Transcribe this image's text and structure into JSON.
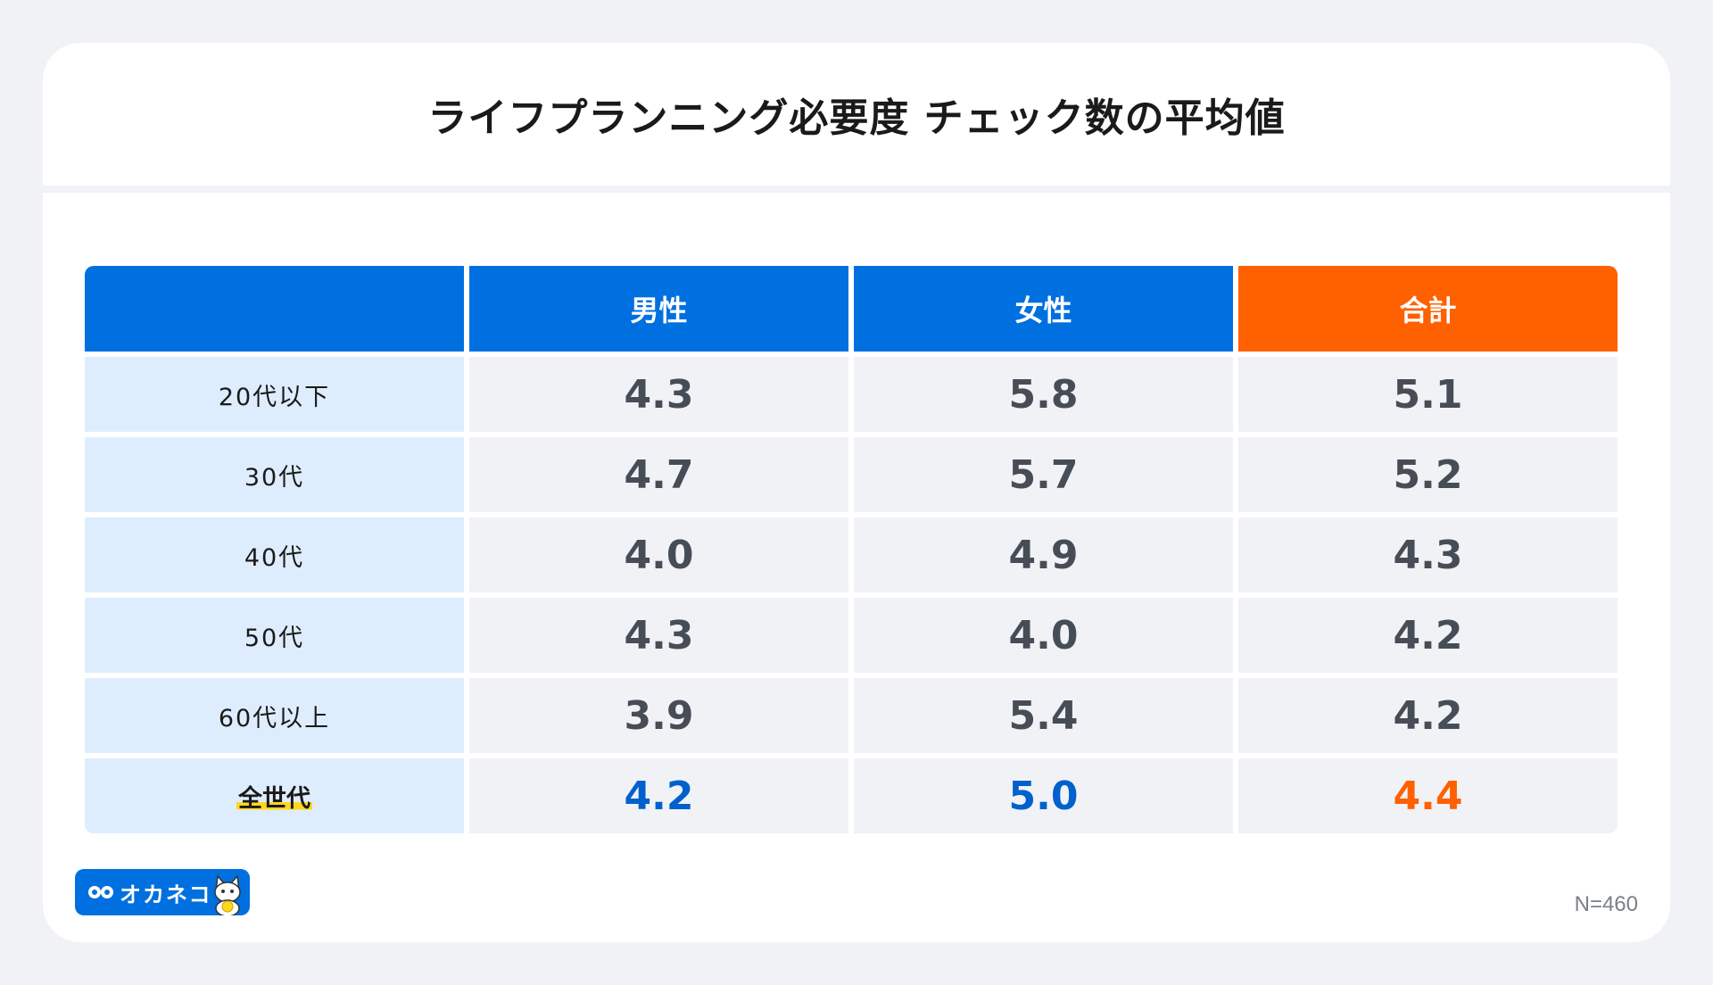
{
  "title": "ライフプランニング必要度 チェック数の平均値",
  "table": {
    "headers": [
      "",
      "男性",
      "女性",
      "合計"
    ],
    "rows": [
      {
        "label": "20代以下",
        "values": [
          "4.3",
          "5.8",
          "5.1"
        ]
      },
      {
        "label": "30代",
        "values": [
          "4.7",
          "5.7",
          "5.2"
        ]
      },
      {
        "label": "40代",
        "values": [
          "4.0",
          "4.9",
          "4.3"
        ]
      },
      {
        "label": "50代",
        "values": [
          "4.3",
          "4.0",
          "4.2"
        ]
      },
      {
        "label": "60代以上",
        "values": [
          "3.9",
          "5.4",
          "4.2"
        ]
      },
      {
        "label": "全世代",
        "values": [
          "4.2",
          "5.0",
          "4.4"
        ]
      }
    ]
  },
  "chart_data": {
    "type": "table",
    "title": "ライフプランニング必要度 チェック数の平均値",
    "columns": [
      "男性",
      "女性",
      "合計"
    ],
    "rows": [
      "20代以下",
      "30代",
      "40代",
      "50代",
      "60代以上",
      "全世代"
    ],
    "values": [
      [
        4.3,
        5.8,
        5.1
      ],
      [
        4.7,
        5.7,
        5.2
      ],
      [
        4.0,
        4.9,
        4.3
      ],
      [
        4.3,
        4.0,
        4.2
      ],
      [
        3.9,
        5.4,
        4.2
      ],
      [
        4.2,
        5.0,
        4.4
      ]
    ]
  },
  "logo": {
    "text": "オカネコ"
  },
  "footnote": "N=460",
  "colors": {
    "header_blue": "#0070e0",
    "header_orange": "#ff6000",
    "label_bg": "#deedfd",
    "cell_bg": "#f0f2f5",
    "highlight_yellow": "#ffd81c"
  }
}
